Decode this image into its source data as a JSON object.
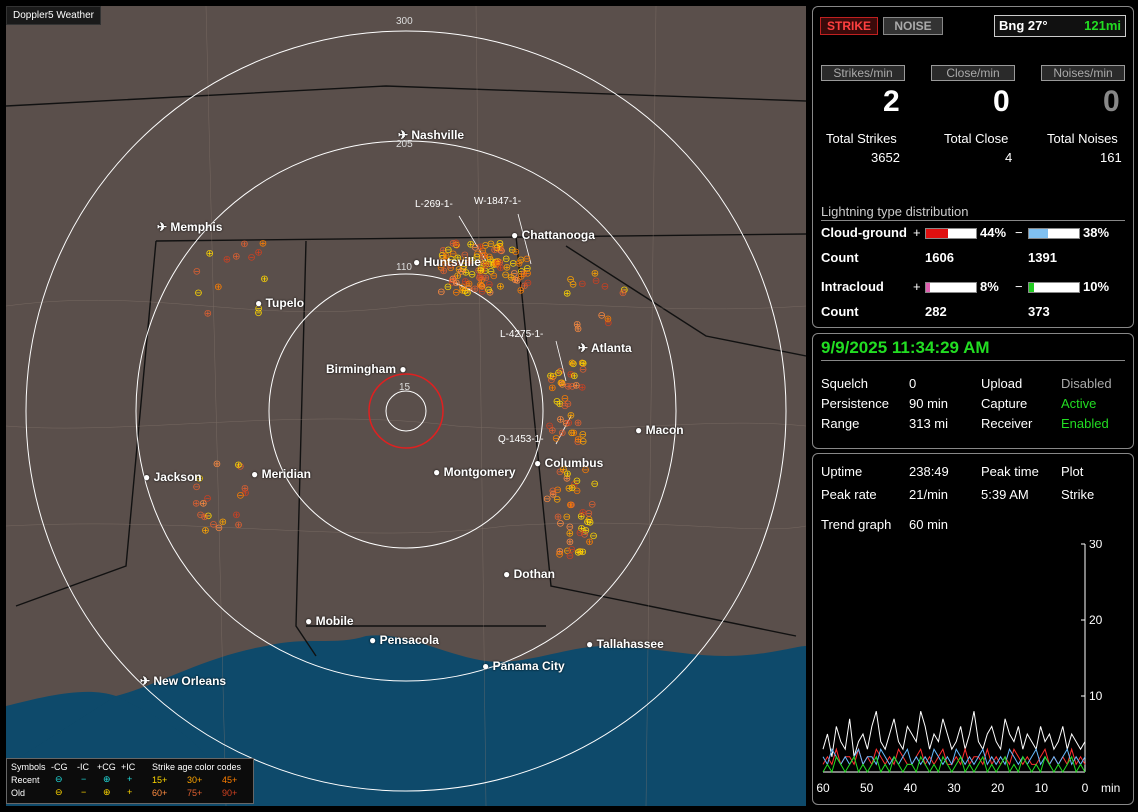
{
  "map": {
    "app_tag": "Doppler5 Weather",
    "ring_labels": [
      "300",
      "205",
      "110",
      "15"
    ],
    "cities": [
      {
        "name": "Nashville",
        "type": "airport"
      },
      {
        "name": "Memphis",
        "type": "airport"
      },
      {
        "name": "Chattanooga",
        "type": "city"
      },
      {
        "name": "Huntsville",
        "type": "city"
      },
      {
        "name": "Tupelo",
        "type": "city"
      },
      {
        "name": "Atlanta",
        "type": "airport"
      },
      {
        "name": "Birmingham",
        "type": "city"
      },
      {
        "name": "Macon",
        "type": "city"
      },
      {
        "name": "Columbus",
        "type": "city"
      },
      {
        "name": "Montgomery",
        "type": "city"
      },
      {
        "name": "Jackson",
        "type": "airport"
      },
      {
        "name": "Meridian",
        "type": "city"
      },
      {
        "name": "Dothan",
        "type": "city"
      },
      {
        "name": "Mobile",
        "type": "city"
      },
      {
        "name": "Pensacola",
        "type": "city"
      },
      {
        "name": "Tallahassee",
        "type": "city"
      },
      {
        "name": "Panama City",
        "type": "city"
      },
      {
        "name": "New Orleans",
        "type": "airport"
      }
    ],
    "strike_labels": [
      "L-269-1-",
      "W-1847-1-",
      "L-4275-1-",
      "Q-1453-1-"
    ]
  },
  "legend": {
    "symbols_label": "Symbols",
    "cols": [
      "-CG",
      "-IC",
      "+CG",
      "+IC"
    ],
    "recent_label": "Recent",
    "old_label": "Old",
    "age_title": "Strike age color codes",
    "recent_ages": [
      "15+",
      "30+",
      "45+"
    ],
    "old_ages": [
      "60+",
      "75+",
      "90+"
    ],
    "age_colors": [
      "#ffd700",
      "#ffa500",
      "#ff7f00",
      "#ff8c40",
      "#e06030",
      "#d04020"
    ]
  },
  "status": {
    "strike_button": "STRIKE",
    "noise_button": "NOISE",
    "bearing": "Bng 27°",
    "distance": "121mi",
    "headers": [
      "Strikes/min",
      "Close/min",
      "Noises/min"
    ],
    "rates": [
      "2",
      "0",
      "0"
    ],
    "total_labels": [
      "Total Strikes",
      "Total Close",
      "Total Noises"
    ],
    "totals": [
      "3652",
      "4",
      "161"
    ],
    "dist_title": "Lightning type distribution",
    "cg_label": "Cloud-ground",
    "ic_label": "Intracloud",
    "count_label": "Count",
    "cg_pos_pct": "44%",
    "cg_neg_pct": "38%",
    "ic_pos_pct": "8%",
    "ic_neg_pct": "10%",
    "cg_pos_count": "1606",
    "cg_neg_count": "1391",
    "ic_pos_count": "282",
    "ic_neg_count": "373",
    "cg_pos_frac": 0.44,
    "cg_neg_frac": 0.38,
    "ic_pos_frac": 0.08,
    "ic_neg_frac": 0.1,
    "plus": "+",
    "minus": "−"
  },
  "settings": {
    "datetime": "9/9/2025 11:34:29 AM",
    "squelch_label": "Squelch",
    "squelch": "0",
    "persistence_label": "Persistence",
    "persistence": "90 min",
    "range_label": "Range",
    "range": "313 mi",
    "upload_label": "Upload",
    "upload": "Disabled",
    "capture_label": "Capture",
    "capture": "Active",
    "receiver_label": "Receiver",
    "receiver": "Enabled"
  },
  "trend": {
    "uptime_label": "Uptime",
    "uptime": "238:49",
    "peak_time_label": "Peak time",
    "peak_time": "5:39 AM",
    "plot_label": "Plot",
    "plot": "Strike",
    "peak_rate_label": "Peak rate",
    "peak_rate": "21/min",
    "trend_label": "Trend graph",
    "trend_value": "60 min"
  },
  "chart_data": {
    "type": "line",
    "x_ticks": [
      "60",
      "50",
      "40",
      "30",
      "20",
      "10",
      "0"
    ],
    "x_unit": "min",
    "y_ticks": [
      "30",
      "20",
      "10"
    ],
    "ylim": [
      0,
      30
    ],
    "xlim": [
      60,
      0
    ],
    "series": [
      {
        "color": "#ffffff",
        "values": [
          3,
          5,
          2,
          6,
          4,
          3,
          7,
          2,
          4,
          5,
          3,
          6,
          8,
          4,
          3,
          5,
          7,
          4,
          3,
          6,
          5,
          4,
          8,
          6,
          3,
          5,
          4,
          7,
          5,
          3,
          4,
          6,
          3,
          5,
          8,
          4,
          3,
          5,
          6,
          4,
          3,
          7,
          5,
          4,
          6,
          3,
          5,
          4,
          3,
          6,
          4,
          5,
          3,
          4,
          6,
          3,
          5,
          4,
          3,
          4
        ]
      },
      {
        "color": "#ff3030",
        "values": [
          1,
          2,
          1,
          3,
          1,
          2,
          2,
          1,
          3,
          1,
          2,
          1,
          3,
          2,
          1,
          2,
          1,
          3,
          2,
          1,
          1,
          2,
          3,
          1,
          2,
          1,
          2,
          3,
          1,
          1,
          2,
          1,
          3,
          1,
          2,
          2,
          1,
          3,
          1,
          2,
          1,
          2,
          1,
          3,
          2,
          1,
          2,
          1,
          1,
          2,
          3,
          1,
          2,
          1,
          2,
          1,
          3,
          1,
          2,
          1
        ]
      },
      {
        "color": "#66bbff",
        "values": [
          2,
          1,
          3,
          2,
          1,
          2,
          1,
          2,
          3,
          1,
          2,
          2,
          1,
          3,
          2,
          1,
          2,
          1,
          2,
          3,
          1,
          2,
          1,
          2,
          1,
          3,
          2,
          1,
          2,
          1,
          3,
          2,
          1,
          2,
          1,
          2,
          3,
          1,
          2,
          1,
          2,
          1,
          3,
          2,
          1,
          2,
          1,
          2,
          3,
          1,
          2,
          1,
          2,
          1,
          2,
          3,
          1,
          2,
          1,
          2
        ]
      },
      {
        "color": "#22dd22",
        "values": [
          0,
          1,
          0,
          2,
          1,
          0,
          1,
          2,
          0,
          1,
          0,
          1,
          2,
          0,
          1,
          0,
          2,
          1,
          0,
          1,
          1,
          0,
          2,
          1,
          0,
          1,
          0,
          2,
          1,
          0,
          1,
          2,
          0,
          1,
          0,
          1,
          2,
          0,
          1,
          0,
          1,
          2,
          0,
          1,
          0,
          2,
          1,
          0,
          1,
          0,
          2,
          1,
          0,
          1,
          0,
          1,
          2,
          0,
          1,
          0
        ]
      }
    ]
  }
}
